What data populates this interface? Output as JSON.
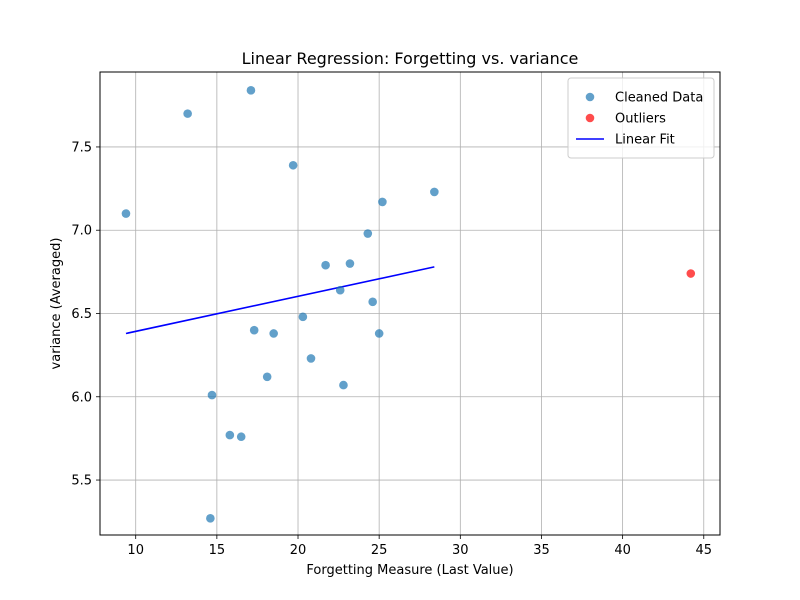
{
  "chart_data": {
    "type": "scatter",
    "title": "Linear Regression: Forgetting vs. variance",
    "xlabel": "Forgetting Measure (Last Value)",
    "ylabel": "variance (Averaged)",
    "xlim": [
      7.8,
      46.0
    ],
    "ylim": [
      5.17,
      7.95
    ],
    "xticks": [
      10,
      15,
      20,
      25,
      30,
      35,
      40,
      45
    ],
    "yticks": [
      5.5,
      6.0,
      6.5,
      7.0,
      7.5
    ],
    "xtick_labels": [
      "10",
      "15",
      "20",
      "25",
      "30",
      "35",
      "40",
      "45"
    ],
    "ytick_labels": [
      "5.5",
      "6.0",
      "6.5",
      "7.0",
      "7.5"
    ],
    "grid": true,
    "legend_position": "top-right",
    "series": [
      {
        "name": "Cleaned Data",
        "kind": "scatter",
        "color": "#1f77b4",
        "points": [
          [
            9.4,
            7.1
          ],
          [
            13.2,
            7.7
          ],
          [
            17.1,
            7.84
          ],
          [
            19.7,
            7.39
          ],
          [
            28.4,
            7.23
          ],
          [
            25.2,
            7.17
          ],
          [
            24.3,
            6.98
          ],
          [
            23.2,
            6.8
          ],
          [
            21.7,
            6.79
          ],
          [
            22.6,
            6.64
          ],
          [
            24.6,
            6.57
          ],
          [
            20.3,
            6.48
          ],
          [
            17.3,
            6.4
          ],
          [
            18.5,
            6.38
          ],
          [
            25.0,
            6.38
          ],
          [
            20.8,
            6.23
          ],
          [
            18.1,
            6.12
          ],
          [
            22.8,
            6.07
          ],
          [
            14.7,
            6.01
          ],
          [
            15.8,
            5.77
          ],
          [
            16.5,
            5.76
          ],
          [
            14.6,
            5.27
          ]
        ]
      },
      {
        "name": "Outliers",
        "kind": "scatter",
        "color": "#ff0000",
        "points": [
          [
            44.2,
            6.74
          ]
        ]
      },
      {
        "name": "Linear Fit",
        "kind": "line",
        "color": "#0000ff",
        "points": [
          [
            9.4,
            6.38
          ],
          [
            28.4,
            6.78
          ]
        ]
      }
    ]
  }
}
